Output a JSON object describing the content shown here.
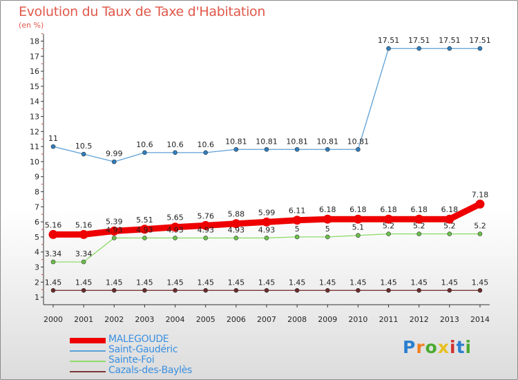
{
  "title": "Evolution du Taux de Taxe d'Habitation",
  "unit_label": "(en %)",
  "logo": {
    "text": "Proxiti",
    "letter_colors": [
      "#2a7fd0",
      "#f08020",
      "#4aaa30",
      "#e8c020",
      "#d03030",
      "#2a7fd0",
      "#4aaa30"
    ]
  },
  "chart_data": {
    "type": "line",
    "x": [
      "2000",
      "2001",
      "2002",
      "2003",
      "2004",
      "2005",
      "2006",
      "2007",
      "2008",
      "2009",
      "2010",
      "2011",
      "2012",
      "2013",
      "2014"
    ],
    "yticks": [
      "1",
      "2",
      "3",
      "4",
      "5",
      "6",
      "7",
      "8",
      "9",
      "10",
      "11",
      "12",
      "13",
      "14",
      "15",
      "16",
      "17",
      "18"
    ],
    "ylim": [
      0.5,
      18.3
    ],
    "series": [
      {
        "name": "Saint-Gaudéric",
        "color": "#5b9fd6",
        "point_color": "#2f7fc0",
        "values": [
          11,
          10.5,
          9.99,
          10.6,
          10.6,
          10.6,
          10.81,
          10.81,
          10.81,
          10.81,
          10.81,
          17.51,
          17.51,
          17.51,
          17.51
        ],
        "labels": [
          "11",
          "10.5",
          "9.99",
          "10.6",
          "10.6",
          "10.6",
          "10.81",
          "10.81",
          "10.81",
          "10.81",
          "10.81",
          "17.51",
          "17.51",
          "17.51",
          "17.51"
        ]
      },
      {
        "name": "Sainte-Foi",
        "color": "#8fdb6a",
        "point_color": "#6cc24a",
        "values": [
          3.34,
          3.34,
          4.93,
          4.93,
          4.93,
          4.93,
          4.93,
          4.93,
          5,
          5,
          5.1,
          5.2,
          5.2,
          5.2,
          5.2
        ],
        "labels": [
          "3.34",
          "3.34",
          "4.93",
          "4.93",
          "4.93",
          "4.93",
          "4.93",
          "4.93",
          "5",
          "5",
          "5.1",
          "5.2",
          "5.2",
          "5.2",
          "5.2"
        ]
      },
      {
        "name": "Cazals-des-Baylès",
        "color": "#7a3535",
        "point_color": "#6a2b2b",
        "values": [
          1.45,
          1.45,
          1.45,
          1.45,
          1.45,
          1.45,
          1.45,
          1.45,
          1.45,
          1.45,
          1.45,
          1.45,
          1.45,
          1.45,
          1.45
        ],
        "labels": [
          "1.45",
          "1.45",
          "1.45",
          "1.45",
          "1.45",
          "1.45",
          "1.45",
          "1.45",
          "1.45",
          "1.45",
          "1.45",
          "1.45",
          "1.45",
          "1.45",
          "1.45"
        ]
      },
      {
        "name": "MALEGOUDE",
        "color": "#ee0000",
        "point_color": "#ee0000",
        "values": [
          5.16,
          5.16,
          5.39,
          5.51,
          5.65,
          5.76,
          5.88,
          5.99,
          6.11,
          6.18,
          6.18,
          6.18,
          6.18,
          6.18,
          7.18
        ],
        "labels": [
          "5.16",
          "5.16",
          "5.39",
          "5.51",
          "5.65",
          "5.76",
          "5.88",
          "5.99",
          "6.11",
          "6.18",
          "6.18",
          "6.18",
          "6.18",
          "6.18",
          "7.18"
        ]
      }
    ],
    "legend": {
      "placement": "bottom-left",
      "entries": [
        {
          "name": "MALEGOUDE",
          "color": "#ee0000",
          "text_color": "#3a8fe0",
          "emphasis": "thick"
        },
        {
          "name": "Saint-Gaudéric",
          "color": "#5b9fd6",
          "text_color": "#3a8fe0",
          "emphasis": "thin"
        },
        {
          "name": "Sainte-Foi",
          "color": "#8fdb6a",
          "text_color": "#3a8fe0",
          "emphasis": "thin"
        },
        {
          "name": "Cazals-des-Baylès",
          "color": "#7a3535",
          "text_color": "#3a8fe0",
          "emphasis": "thin"
        }
      ]
    }
  }
}
